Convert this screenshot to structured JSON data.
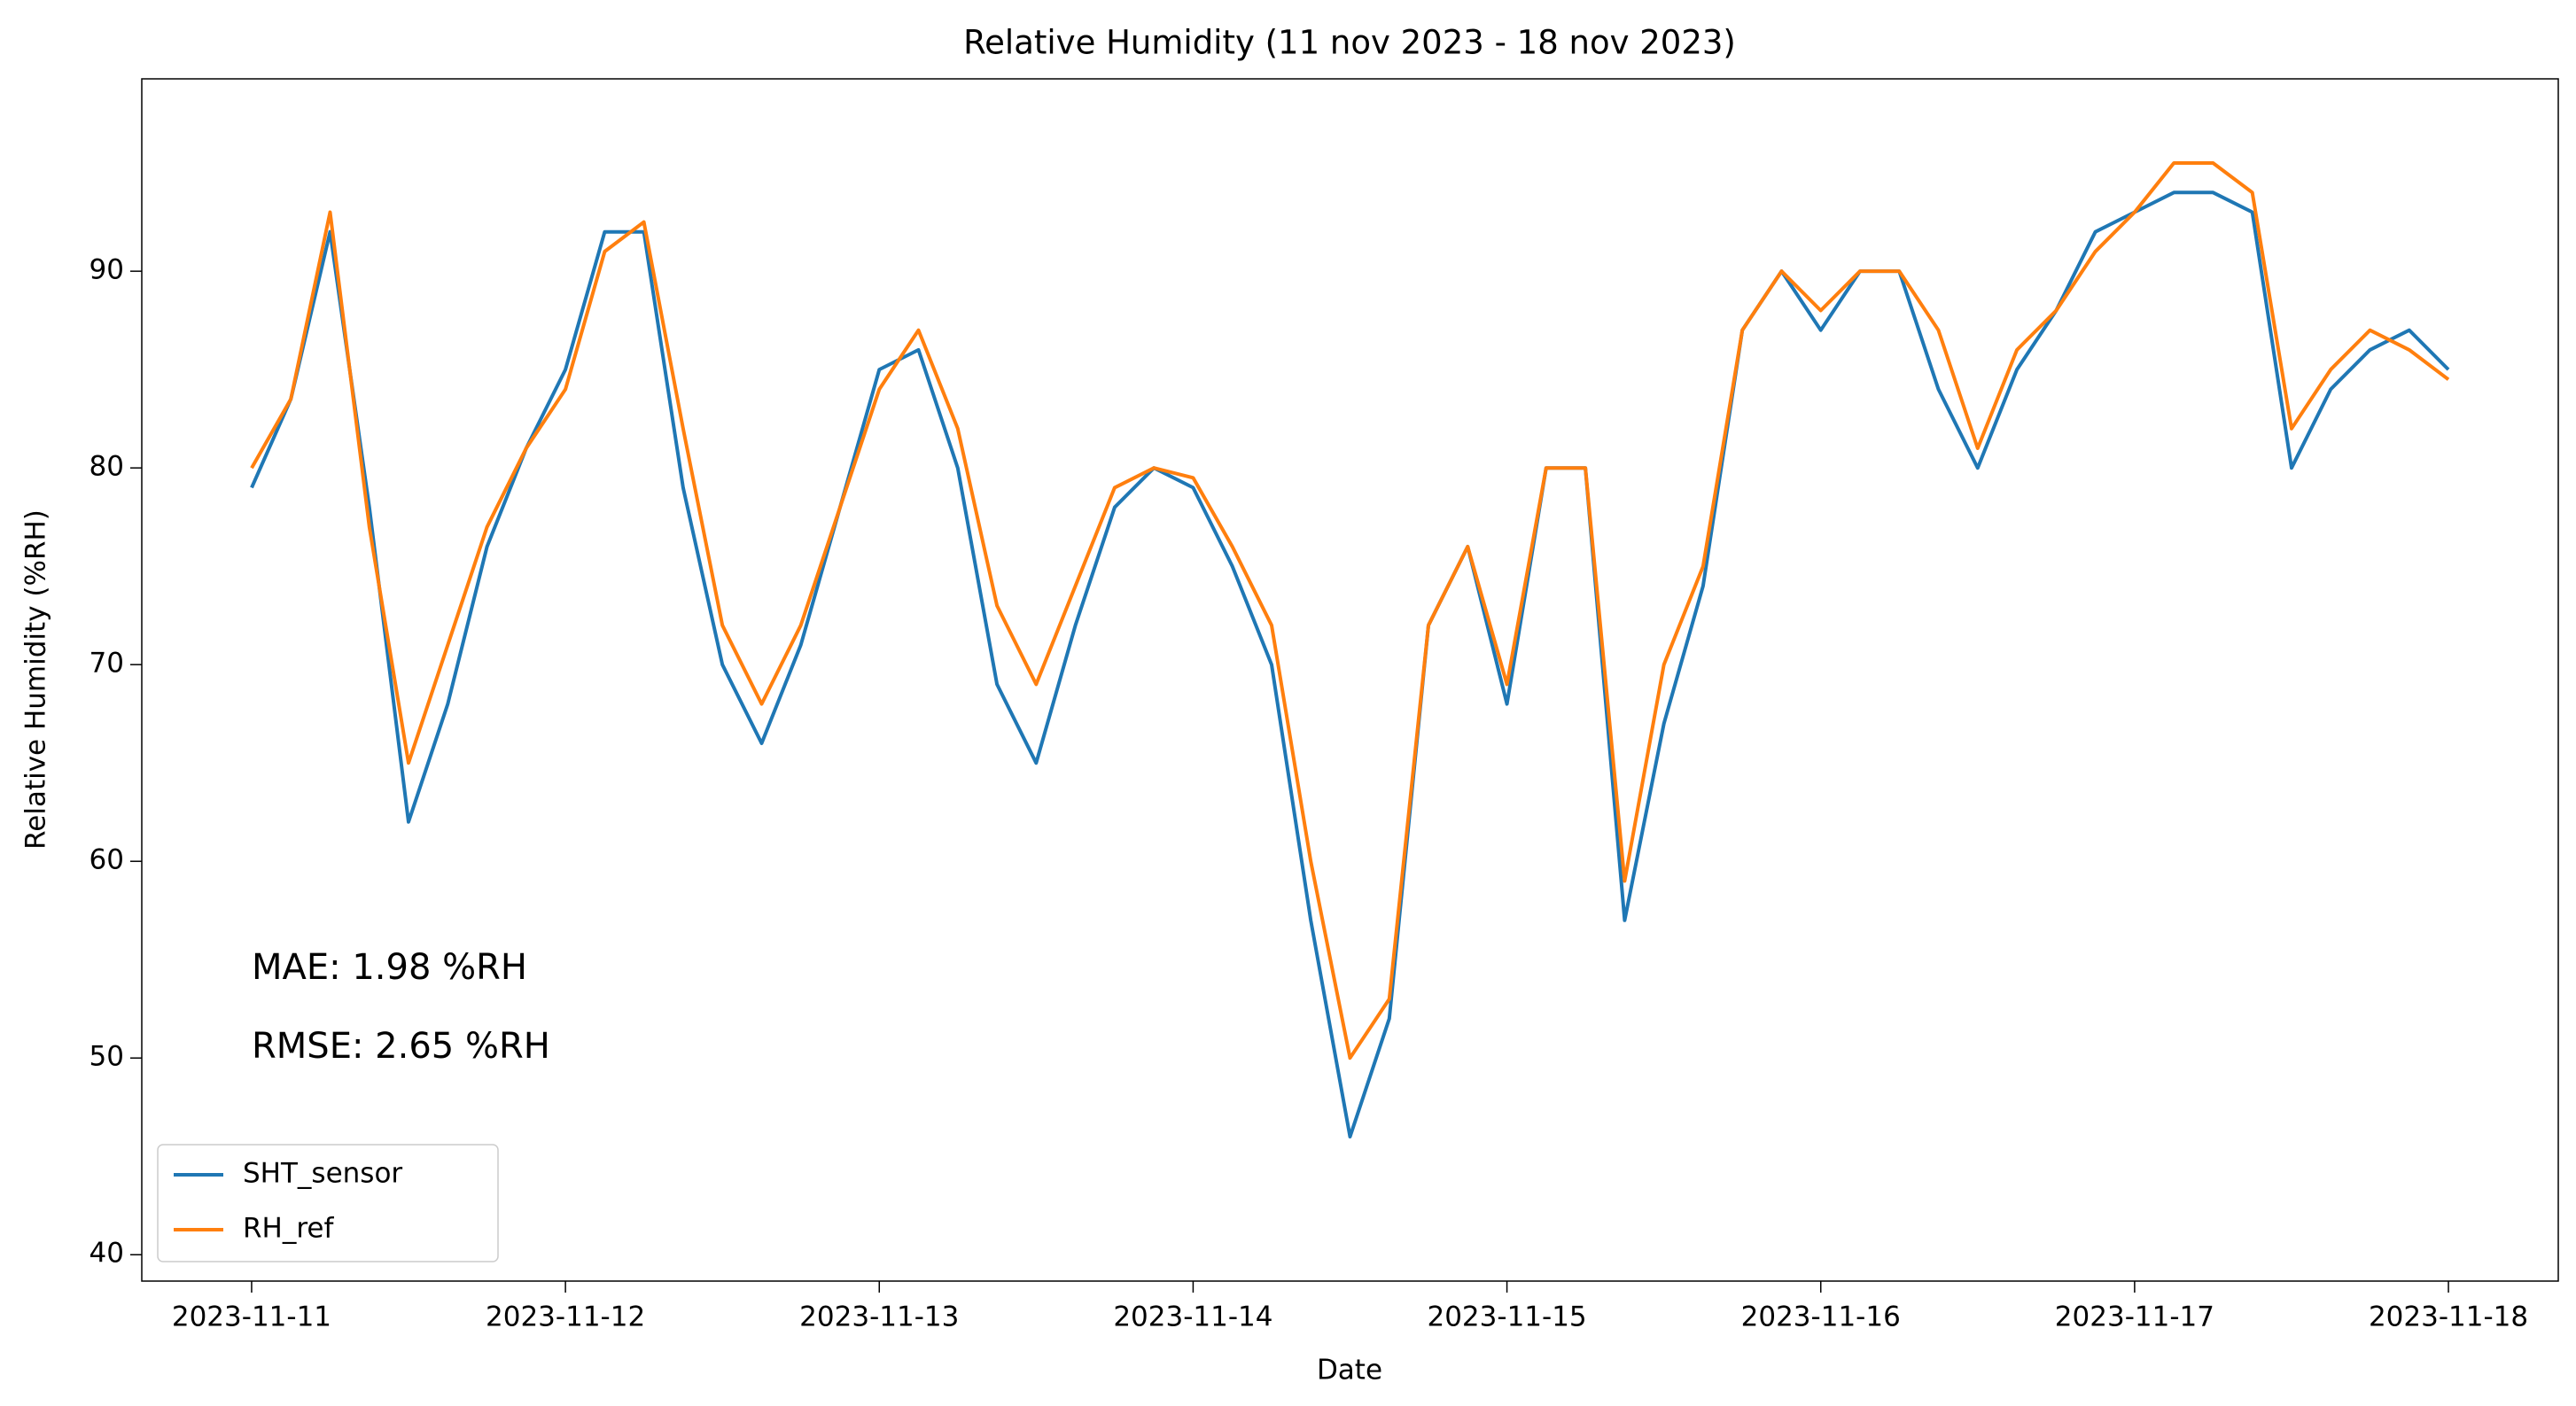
{
  "chart_data": {
    "type": "line",
    "title": "Relative Humidity (11 nov 2023 - 18 nov 2023)",
    "xlabel": "Date",
    "ylabel": "Relative Humidity (%RH)",
    "annotations": [
      "MAE: 1.98 %RH",
      "RMSE: 2.65 %RH"
    ],
    "x": [
      0,
      0.125,
      0.25,
      0.375,
      0.5,
      0.625,
      0.75,
      0.875,
      1,
      1.125,
      1.25,
      1.375,
      1.5,
      1.625,
      1.75,
      1.875,
      2,
      2.125,
      2.25,
      2.375,
      2.5,
      2.625,
      2.75,
      2.875,
      3,
      3.125,
      3.25,
      3.375,
      3.5,
      3.625,
      3.75,
      3.875,
      4,
      4.125,
      4.25,
      4.375,
      4.5,
      4.625,
      4.75,
      4.875,
      5,
      5.125,
      5.25,
      5.375,
      5.5,
      5.625,
      5.75,
      5.875,
      6,
      6.125,
      6.25,
      6.375,
      6.5,
      6.625,
      6.75,
      6.875,
      7
    ],
    "series": [
      {
        "name": "SHT_sensor",
        "color": "#1f77b4",
        "values": [
          79,
          83.5,
          92,
          78,
          62,
          68,
          76,
          81,
          85,
          92,
          92,
          79,
          70,
          66,
          71,
          78,
          85,
          86,
          80,
          69,
          65,
          72,
          78,
          80,
          79,
          75,
          70,
          57,
          46,
          52,
          72,
          76,
          68,
          80,
          80,
          57,
          67,
          74,
          87,
          90,
          87,
          90,
          90,
          84,
          80,
          85,
          88,
          92,
          93,
          94,
          94,
          93,
          80,
          84,
          86,
          87,
          85
        ]
      },
      {
        "name": "RH_ref",
        "color": "#ff7f0e",
        "values": [
          80,
          83.5,
          93,
          77,
          65,
          71,
          77,
          81,
          84,
          91,
          92.5,
          82,
          72,
          68,
          72,
          78,
          84,
          87,
          82,
          73,
          69,
          74,
          79,
          80,
          79.5,
          76,
          72,
          60,
          50,
          53,
          72,
          76,
          69,
          80,
          80,
          59,
          70,
          75,
          87,
          90,
          88,
          90,
          90,
          87,
          81,
          86,
          88,
          91,
          93,
          95.5,
          95.5,
          94,
          82,
          85,
          87,
          86,
          84.5
        ]
      }
    ],
    "xlim": [
      -0.35,
      7.35
    ],
    "xticks": [
      {
        "value": 0,
        "label": "2023-11-11"
      },
      {
        "value": 1,
        "label": "2023-11-12"
      },
      {
        "value": 2,
        "label": "2023-11-13"
      },
      {
        "value": 3,
        "label": "2023-11-14"
      },
      {
        "value": 4,
        "label": "2023-11-15"
      },
      {
        "value": 5,
        "label": "2023-11-16"
      },
      {
        "value": 6,
        "label": "2023-11-17"
      },
      {
        "value": 7,
        "label": "2023-11-18"
      }
    ],
    "ylim": [
      38.66,
      99.78
    ],
    "yticks": [
      40,
      50,
      60,
      70,
      80,
      90
    ],
    "legend": "lower left"
  }
}
